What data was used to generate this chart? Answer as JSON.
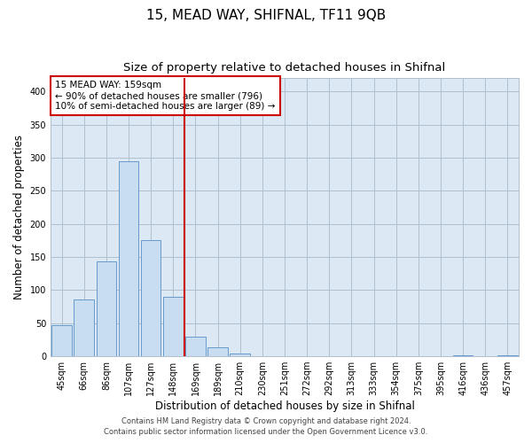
{
  "title": "15, MEAD WAY, SHIFNAL, TF11 9QB",
  "subtitle": "Size of property relative to detached houses in Shifnal",
  "xlabel": "Distribution of detached houses by size in Shifnal",
  "ylabel": "Number of detached properties",
  "bar_labels": [
    "45sqm",
    "66sqm",
    "86sqm",
    "107sqm",
    "127sqm",
    "148sqm",
    "169sqm",
    "189sqm",
    "210sqm",
    "230sqm",
    "251sqm",
    "272sqm",
    "292sqm",
    "313sqm",
    "333sqm",
    "354sqm",
    "375sqm",
    "395sqm",
    "416sqm",
    "436sqm",
    "457sqm"
  ],
  "bar_values": [
    47,
    86,
    144,
    294,
    175,
    90,
    30,
    14,
    4,
    0,
    0,
    0,
    0,
    0,
    0,
    0,
    0,
    0,
    2,
    0,
    2
  ],
  "bar_color": "#c8ddf0",
  "bar_edge_color": "#6699cc",
  "vline_x": 5.5,
  "vline_color": "#cc0000",
  "ylim": [
    0,
    420
  ],
  "yticks": [
    0,
    50,
    100,
    150,
    200,
    250,
    300,
    350,
    400
  ],
  "annotation_title": "15 MEAD WAY: 159sqm",
  "annotation_line1": "← 90% of detached houses are smaller (796)",
  "annotation_line2": "10% of semi-detached houses are larger (89) →",
  "annotation_box_color": "#ffffff",
  "annotation_box_edge": "#cc0000",
  "footer1": "Contains HM Land Registry data © Crown copyright and database right 2024.",
  "footer2": "Contains public sector information licensed under the Open Government Licence v3.0.",
  "plot_bg_color": "#dde8f5",
  "fig_bg_color": "#ffffff",
  "grid_color": "#b0bfd0",
  "title_fontsize": 11,
  "subtitle_fontsize": 9.5,
  "axis_label_fontsize": 8.5,
  "tick_fontsize": 7,
  "annotation_fontsize": 7.5,
  "footer_fontsize": 6
}
